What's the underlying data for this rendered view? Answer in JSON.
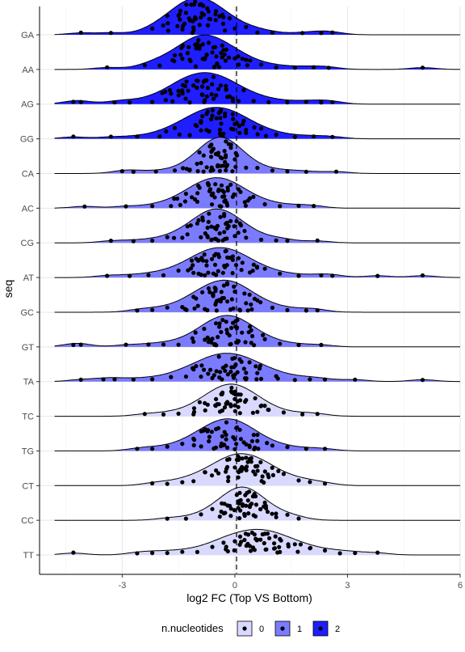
{
  "chart_data": {
    "type": "ridgeline-jitter",
    "xlabel": "log2 FC (Top VS Bottom)",
    "ylabel": "seq",
    "xlim": [
      -5.2,
      6.0
    ],
    "x_ticks": [
      -3,
      0,
      3,
      6
    ],
    "x_tick_labels": [
      "-3",
      "0",
      "3",
      "6"
    ],
    "reference_line_x": 0,
    "grid": true,
    "legend": {
      "title": "n.nucleotides",
      "position": "bottom",
      "entries": [
        {
          "label": "0",
          "color": "#d9d9ff"
        },
        {
          "label": "1",
          "color": "#7b7bff"
        },
        {
          "label": "2",
          "color": "#1e1eff"
        }
      ]
    },
    "series": [
      {
        "name": "GA",
        "n_nucleotides": 2,
        "peak_x": -1.0,
        "spread": 0.75,
        "height": 0.95,
        "points_x": [
          -4.1,
          -3.3,
          -2.2,
          -1.8,
          -1.5,
          -1.3,
          -1.1,
          -0.9,
          -0.7,
          -0.5,
          -0.3,
          0.0,
          0.3,
          0.6,
          1.0,
          1.8,
          2.3,
          2.6
        ]
      },
      {
        "name": "AA",
        "n_nucleotides": 2,
        "peak_x": -0.8,
        "spread": 0.8,
        "height": 0.9,
        "points_x": [
          -3.4,
          -2.4,
          -2.0,
          -1.6,
          -1.2,
          -1.0,
          -0.8,
          -0.6,
          -0.3,
          0.0,
          0.3,
          0.7,
          1.1,
          1.6,
          2.1,
          2.5,
          5.0
        ]
      },
      {
        "name": "AG",
        "n_nucleotides": 2,
        "peak_x": -0.8,
        "spread": 0.85,
        "height": 0.85,
        "points_x": [
          -4.3,
          -4.1,
          -3.2,
          -2.8,
          -2.2,
          -1.7,
          -1.4,
          -1.1,
          -0.8,
          -0.5,
          -0.2,
          0.1,
          0.5,
          0.9,
          1.4,
          1.9,
          2.3,
          2.6
        ]
      },
      {
        "name": "GG",
        "n_nucleotides": 2,
        "peak_x": -0.5,
        "spread": 0.85,
        "height": 0.85,
        "points_x": [
          -4.3,
          -3.3,
          -2.6,
          -2.0,
          -1.6,
          -1.2,
          -0.9,
          -0.6,
          -0.3,
          0.0,
          0.3,
          0.7,
          1.1,
          1.6,
          2.1,
          2.6
        ]
      },
      {
        "name": "CA",
        "n_nucleotides": 1,
        "peak_x": -0.4,
        "spread": 0.6,
        "height": 0.95,
        "points_x": [
          -3.0,
          -2.7,
          -2.1,
          -1.6,
          -1.2,
          -0.9,
          -0.6,
          -0.4,
          -0.2,
          0.0,
          0.3,
          0.6,
          1.0,
          1.4,
          1.9,
          2.7
        ]
      },
      {
        "name": "AC",
        "n_nucleotides": 1,
        "peak_x": -0.5,
        "spread": 0.75,
        "height": 0.8,
        "points_x": [
          -4.0,
          -2.9,
          -2.2,
          -1.7,
          -1.3,
          -1.0,
          -0.7,
          -0.4,
          -0.2,
          0.1,
          0.4,
          0.8,
          1.2,
          1.7,
          2.1
        ]
      },
      {
        "name": "CG",
        "n_nucleotides": 1,
        "peak_x": -0.5,
        "spread": 0.7,
        "height": 0.9,
        "points_x": [
          -3.3,
          -2.7,
          -2.2,
          -1.8,
          -1.4,
          -1.0,
          -0.7,
          -0.5,
          -0.2,
          0.0,
          0.3,
          0.7,
          1.1,
          1.4,
          2.2
        ]
      },
      {
        "name": "AT",
        "n_nucleotides": 1,
        "peak_x": -0.4,
        "spread": 0.8,
        "height": 0.8,
        "points_x": [
          -3.4,
          -2.8,
          -2.3,
          -1.9,
          -1.5,
          -1.1,
          -0.8,
          -0.5,
          -0.2,
          0.1,
          0.4,
          0.8,
          1.2,
          1.7,
          2.3,
          2.6,
          3.8,
          5.0
        ]
      },
      {
        "name": "GC",
        "n_nucleotides": 1,
        "peak_x": -0.3,
        "spread": 0.75,
        "height": 0.85,
        "points_x": [
          -2.6,
          -2.2,
          -1.8,
          -1.4,
          -1.1,
          -0.8,
          -0.5,
          -0.2,
          0.0,
          0.3,
          0.6,
          1.0,
          1.4,
          1.9,
          2.2
        ]
      },
      {
        "name": "GT",
        "n_nucleotides": 1,
        "peak_x": -0.2,
        "spread": 0.7,
        "height": 0.85,
        "points_x": [
          -4.3,
          -4.1,
          -2.9,
          -2.3,
          -1.9,
          -1.5,
          -1.1,
          -0.8,
          -0.5,
          -0.2,
          0.1,
          0.4,
          0.8,
          1.2,
          1.7,
          2.3
        ]
      },
      {
        "name": "TA",
        "n_nucleotides": 1,
        "peak_x": -0.2,
        "spread": 0.9,
        "height": 0.75,
        "points_x": [
          -4.1,
          -3.5,
          -3.2,
          -2.7,
          -2.2,
          -1.7,
          -1.3,
          -0.9,
          -0.6,
          -0.3,
          0.0,
          0.3,
          0.7,
          1.1,
          1.6,
          2.0,
          2.4,
          3.2,
          5.0
        ]
      },
      {
        "name": "TC",
        "n_nucleotides": 0,
        "peak_x": -0.1,
        "spread": 0.7,
        "height": 0.85,
        "points_x": [
          -2.4,
          -1.9,
          -1.5,
          -1.1,
          -0.8,
          -0.5,
          -0.2,
          0.0,
          0.3,
          0.6,
          0.9,
          1.3,
          1.8,
          2.2
        ]
      },
      {
        "name": "TG",
        "n_nucleotides": 1,
        "peak_x": -0.2,
        "spread": 0.75,
        "height": 0.85,
        "points_x": [
          -2.6,
          -2.2,
          -1.8,
          -1.4,
          -1.1,
          -0.8,
          -0.5,
          -0.2,
          0.0,
          0.3,
          0.6,
          1.0,
          1.4,
          1.9,
          2.4
        ]
      },
      {
        "name": "CT",
        "n_nucleotides": 0,
        "peak_x": 0.2,
        "spread": 0.8,
        "height": 0.85,
        "points_x": [
          -2.2,
          -1.8,
          -1.4,
          -1.1,
          -0.8,
          -0.5,
          -0.2,
          0.0,
          0.3,
          0.6,
          0.9,
          1.3,
          1.7,
          2.0,
          2.4
        ]
      },
      {
        "name": "CC",
        "n_nucleotides": 0,
        "peak_x": 0.2,
        "spread": 0.6,
        "height": 0.85,
        "points_x": [
          -1.8,
          -1.3,
          -0.9,
          -0.6,
          -0.4,
          -0.1,
          0.1,
          0.3,
          0.5,
          0.8,
          1.1,
          1.4,
          1.7
        ]
      },
      {
        "name": "TT",
        "n_nucleotides": 0,
        "peak_x": 0.6,
        "spread": 0.9,
        "height": 0.7,
        "points_x": [
          -4.3,
          -2.6,
          -2.2,
          -1.8,
          -1.4,
          -1.0,
          -0.6,
          -0.3,
          0.0,
          0.4,
          0.8,
          1.2,
          1.6,
          2.0,
          2.4,
          2.8,
          3.2,
          3.8
        ]
      }
    ]
  }
}
